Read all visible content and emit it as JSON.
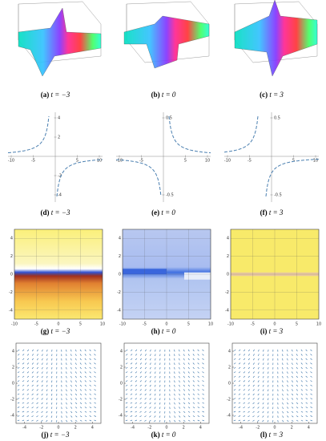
{
  "surface_row": {
    "panels": [
      {
        "label": "(a)",
        "caption": "t = −3"
      },
      {
        "label": "(b)",
        "caption": "t = 0"
      },
      {
        "label": "(c)",
        "caption": "t = 3"
      }
    ]
  },
  "curve_row": {
    "panels": [
      {
        "label": "(d)",
        "caption": "t = −3",
        "xticks": [
          -10,
          -5,
          5,
          10
        ],
        "yticks": [
          4,
          2,
          -2,
          -4
        ]
      },
      {
        "label": "(e)",
        "caption": "t = 0",
        "xticks": [
          -10,
          -5,
          5,
          10
        ],
        "yticks": [
          0.5,
          -0.5
        ]
      },
      {
        "label": "(f)",
        "caption": "t = 3",
        "xticks": [
          -10,
          -5,
          5,
          10
        ],
        "yticks": [
          0.5,
          -0.5
        ]
      }
    ]
  },
  "density_row": {
    "xticks": [
      -10,
      -5,
      0,
      5,
      10
    ],
    "yticks": [
      -4,
      -2,
      0,
      2,
      4
    ],
    "xlim": [
      -10,
      10
    ],
    "ylim": [
      -5,
      5
    ],
    "panels": [
      {
        "label": "(g)",
        "caption": "t = −3"
      },
      {
        "label": "(h)",
        "caption": "t = 0"
      },
      {
        "label": "(i)",
        "caption": "t = 3"
      }
    ]
  },
  "stream_row": {
    "xticks": [
      -4,
      -2,
      0,
      2,
      4
    ],
    "yticks": [
      -4,
      -2,
      0,
      2,
      4
    ],
    "xlim": [
      -5,
      5
    ],
    "ylim": [
      -5,
      5
    ],
    "panels": [
      {
        "label": "(j)",
        "caption": "t = −3"
      },
      {
        "label": "(k)",
        "caption": "t = 0"
      },
      {
        "label": "(l)",
        "caption": "t = 3"
      }
    ]
  }
}
